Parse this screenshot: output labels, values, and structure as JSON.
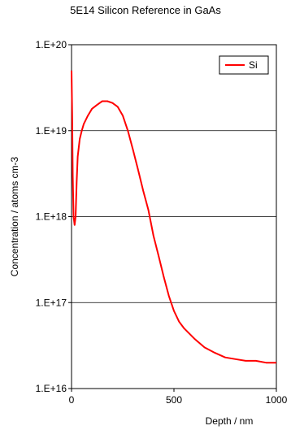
{
  "chart_data": {
    "type": "line",
    "title": "5E14 Silicon Reference in GaAs",
    "xlabel": "Depth / nm",
    "ylabel": "Concentration / atoms cm-3",
    "xlim": [
      0,
      1000
    ],
    "ylim": [
      1e+16,
      1e+20
    ],
    "yscale": "log",
    "x_ticks": [
      0,
      500,
      1000
    ],
    "x_tick_labels": [
      "0",
      "500",
      "1000"
    ],
    "y_ticks": [
      1e+16,
      1e+17,
      1e+18,
      1e+19,
      1e+20
    ],
    "y_tick_labels": [
      "1.E+16",
      "1.E+17",
      "1.E+18",
      "1.E+19",
      "1.E+20"
    ],
    "grid": "horizontal major lines",
    "legend_position": "top-right",
    "series": [
      {
        "name": "Si",
        "color": "#ff0000",
        "x": [
          0,
          3,
          6,
          10,
          15,
          20,
          25,
          30,
          40,
          50,
          60,
          80,
          100,
          125,
          150,
          175,
          200,
          225,
          250,
          275,
          300,
          325,
          350,
          375,
          400,
          425,
          450,
          475,
          500,
          525,
          550,
          600,
          650,
          700,
          750,
          800,
          850,
          900,
          950,
          1000
        ],
        "y": [
          5e+19,
          1.5e+19,
          3e+18,
          1e+18,
          8e+17,
          1e+18,
          2.5e+18,
          5e+18,
          8e+18,
          1e+19,
          1.2e+19,
          1.5e+19,
          1.8e+19,
          2e+19,
          2.2e+19,
          2.2e+19,
          2.1e+19,
          1.9e+19,
          1.5e+19,
          1e+19,
          6e+18,
          3.5e+18,
          2e+18,
          1.2e+18,
          6e+17,
          3.5e+17,
          2e+17,
          1.2e+17,
          8e+16,
          6e+16,
          5e+16,
          3.8e+16,
          3e+16,
          2.6e+16,
          2.3e+16,
          2.2e+16,
          2.1e+16,
          2.1e+16,
          2e+16,
          2e+16
        ]
      }
    ]
  }
}
